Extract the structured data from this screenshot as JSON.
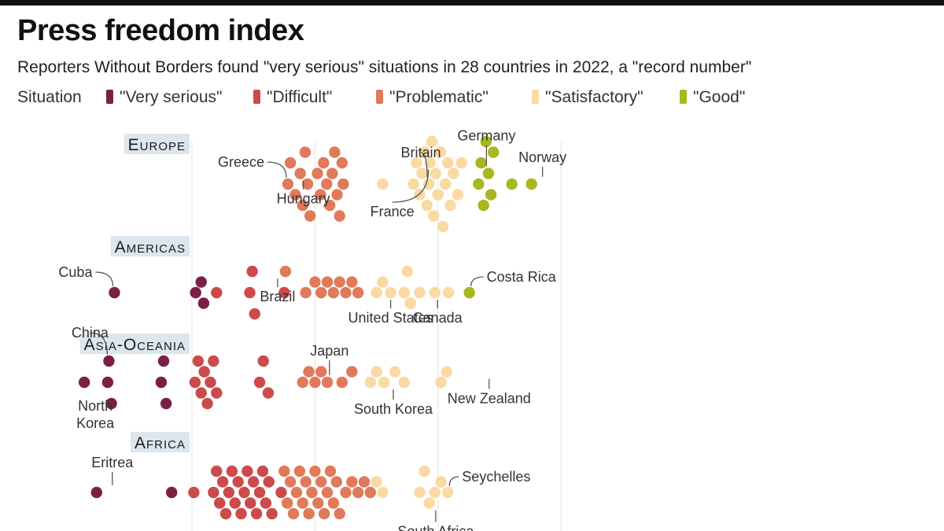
{
  "title": "Press freedom index",
  "subtitle": "Reporters Without Borders found \"very serious\" situations in 28 countries in 2022, a \"record number\"",
  "legend": {
    "label": "Situation",
    "items": [
      {
        "label": "\"Very serious\"",
        "color": "#7a1f45"
      },
      {
        "label": "\"Difficult\"",
        "color": "#cc4a4a"
      },
      {
        "label": "\"Problematic\"",
        "color": "#e07a5a"
      },
      {
        "label": "\"Satisfactory\"",
        "color": "#fbd9a3"
      },
      {
        "label": "\"Good\"",
        "color": "#a8b81e"
      }
    ]
  },
  "chart_data": {
    "type": "scatter",
    "style": "beeswarm",
    "title": "Press freedom index",
    "xlabel": "",
    "ylabel": "",
    "xlim": [
      20,
      100
    ],
    "gridlines_x": [
      40,
      60,
      80,
      100
    ],
    "grid": true,
    "legend_placement": "top",
    "regions": [
      {
        "name": "Europe",
        "annotations": [
          {
            "label": "Greece",
            "x": 55.6
          },
          {
            "label": "Hungary",
            "x": 57.6
          },
          {
            "label": "Britain",
            "x": 78.5
          },
          {
            "label": "Germany",
            "x": 82.5
          },
          {
            "label": "France",
            "x": 78.7
          },
          {
            "label": "Norway",
            "x": 95.2
          }
        ],
        "points": [
          {
            "x": 55.6,
            "c": 2
          },
          {
            "x": 56.0,
            "c": 2
          },
          {
            "x": 56.8,
            "c": 2
          },
          {
            "x": 57.6,
            "c": 2
          },
          {
            "x": 58.0,
            "c": 2
          },
          {
            "x": 58.4,
            "c": 2
          },
          {
            "x": 58.8,
            "c": 2
          },
          {
            "x": 59.2,
            "c": 2
          },
          {
            "x": 60.4,
            "c": 2
          },
          {
            "x": 60.9,
            "c": 2
          },
          {
            "x": 61.4,
            "c": 2
          },
          {
            "x": 61.9,
            "c": 2
          },
          {
            "x": 62.4,
            "c": 2
          },
          {
            "x": 62.8,
            "c": 2
          },
          {
            "x": 63.2,
            "c": 2
          },
          {
            "x": 63.6,
            "c": 2
          },
          {
            "x": 64.0,
            "c": 2
          },
          {
            "x": 64.4,
            "c": 2
          },
          {
            "x": 64.6,
            "c": 2
          },
          {
            "x": 71.0,
            "c": 3
          },
          {
            "x": 76.0,
            "c": 3
          },
          {
            "x": 76.5,
            "c": 3
          },
          {
            "x": 77.0,
            "c": 3
          },
          {
            "x": 77.4,
            "c": 3
          },
          {
            "x": 77.8,
            "c": 3
          },
          {
            "x": 78.2,
            "c": 3
          },
          {
            "x": 78.5,
            "c": 3
          },
          {
            "x": 78.7,
            "c": 3
          },
          {
            "x": 79.0,
            "c": 3
          },
          {
            "x": 79.3,
            "c": 3
          },
          {
            "x": 79.6,
            "c": 3
          },
          {
            "x": 80.0,
            "c": 3
          },
          {
            "x": 80.4,
            "c": 3
          },
          {
            "x": 80.8,
            "c": 3
          },
          {
            "x": 81.2,
            "c": 3
          },
          {
            "x": 81.6,
            "c": 3
          },
          {
            "x": 82.0,
            "c": 3
          },
          {
            "x": 82.5,
            "c": 3
          },
          {
            "x": 83.2,
            "c": 3
          },
          {
            "x": 83.8,
            "c": 3
          },
          {
            "x": 86.6,
            "c": 4
          },
          {
            "x": 87.0,
            "c": 4
          },
          {
            "x": 87.4,
            "c": 4
          },
          {
            "x": 87.8,
            "c": 4
          },
          {
            "x": 88.2,
            "c": 4
          },
          {
            "x": 88.6,
            "c": 4
          },
          {
            "x": 89.0,
            "c": 4
          },
          {
            "x": 92.0,
            "c": 4
          },
          {
            "x": 95.2,
            "c": 4
          }
        ]
      },
      {
        "name": "Americas",
        "annotations": [
          {
            "label": "Cuba",
            "x": 27.4
          },
          {
            "label": "Brazil",
            "x": 55.2
          },
          {
            "label": "United States",
            "x": 72.3
          },
          {
            "label": "Canada",
            "x": 81.7
          },
          {
            "label": "Costa Rica",
            "x": 85.1
          }
        ],
        "points": [
          {
            "x": 27.4,
            "c": 0
          },
          {
            "x": 40.6,
            "c": 0
          },
          {
            "x": 41.5,
            "c": 0
          },
          {
            "x": 41.9,
            "c": 0
          },
          {
            "x": 44.0,
            "c": 1
          },
          {
            "x": 49.4,
            "c": 1
          },
          {
            "x": 49.8,
            "c": 1
          },
          {
            "x": 50.2,
            "c": 1
          },
          {
            "x": 55.0,
            "c": 1
          },
          {
            "x": 55.2,
            "c": 2
          },
          {
            "x": 58.5,
            "c": 2
          },
          {
            "x": 60.0,
            "c": 2
          },
          {
            "x": 61.0,
            "c": 2
          },
          {
            "x": 62.0,
            "c": 2
          },
          {
            "x": 63.0,
            "c": 2
          },
          {
            "x": 64.0,
            "c": 2
          },
          {
            "x": 65.0,
            "c": 2
          },
          {
            "x": 66.0,
            "c": 2
          },
          {
            "x": 67.0,
            "c": 2
          },
          {
            "x": 70.0,
            "c": 3
          },
          {
            "x": 71.0,
            "c": 3
          },
          {
            "x": 72.3,
            "c": 3
          },
          {
            "x": 74.5,
            "c": 3
          },
          {
            "x": 75.0,
            "c": 3
          },
          {
            "x": 75.5,
            "c": 3
          },
          {
            "x": 77.0,
            "c": 3
          },
          {
            "x": 79.5,
            "c": 3
          },
          {
            "x": 81.7,
            "c": 3
          },
          {
            "x": 85.1,
            "c": 4
          }
        ]
      },
      {
        "name": "Asia-Oceania",
        "annotations": [
          {
            "label": "North Korea",
            "x": 22.5
          },
          {
            "label": "China",
            "x": 26.5
          },
          {
            "label": "Japan",
            "x": 64.4
          },
          {
            "label": "South Korea",
            "x": 71.2
          },
          {
            "label": "New Zealand",
            "x": 81.4
          }
        ],
        "points": [
          {
            "x": 22.5,
            "c": 0
          },
          {
            "x": 26.3,
            "c": 0
          },
          {
            "x": 26.5,
            "c": 0
          },
          {
            "x": 26.9,
            "c": 0
          },
          {
            "x": 35.0,
            "c": 0
          },
          {
            "x": 35.4,
            "c": 0
          },
          {
            "x": 35.8,
            "c": 0
          },
          {
            "x": 40.5,
            "c": 1
          },
          {
            "x": 41.0,
            "c": 1
          },
          {
            "x": 41.5,
            "c": 1
          },
          {
            "x": 42.0,
            "c": 1
          },
          {
            "x": 42.5,
            "c": 1
          },
          {
            "x": 43.0,
            "c": 1
          },
          {
            "x": 43.5,
            "c": 1
          },
          {
            "x": 44.0,
            "c": 1
          },
          {
            "x": 51.0,
            "c": 1
          },
          {
            "x": 51.6,
            "c": 1
          },
          {
            "x": 52.4,
            "c": 1
          },
          {
            "x": 58.0,
            "c": 2
          },
          {
            "x": 59.0,
            "c": 2
          },
          {
            "x": 60.0,
            "c": 2
          },
          {
            "x": 61.0,
            "c": 2
          },
          {
            "x": 62.0,
            "c": 2
          },
          {
            "x": 64.4,
            "c": 2
          },
          {
            "x": 66.0,
            "c": 2
          },
          {
            "x": 69.0,
            "c": 3
          },
          {
            "x": 70.0,
            "c": 3
          },
          {
            "x": 71.2,
            "c": 3
          },
          {
            "x": 73.0,
            "c": 3
          },
          {
            "x": 74.5,
            "c": 3
          },
          {
            "x": 80.5,
            "c": 3
          },
          {
            "x": 81.4,
            "c": 3
          }
        ]
      },
      {
        "name": "Africa",
        "annotations": [
          {
            "label": "Eritrea",
            "x": 24.5
          },
          {
            "label": "South Africa",
            "x": 78.6
          },
          {
            "label": "Seychelles",
            "x": 81.6
          }
        ],
        "points": [
          {
            "x": 24.5,
            "c": 0
          },
          {
            "x": 36.7,
            "c": 0
          },
          {
            "x": 40.3,
            "c": 1
          },
          {
            "x": 43.5,
            "c": 1
          },
          {
            "x": 44.0,
            "c": 1
          },
          {
            "x": 44.5,
            "c": 1
          },
          {
            "x": 45.0,
            "c": 1
          },
          {
            "x": 45.5,
            "c": 1
          },
          {
            "x": 46.0,
            "c": 1
          },
          {
            "x": 46.5,
            "c": 1
          },
          {
            "x": 47.0,
            "c": 1
          },
          {
            "x": 47.5,
            "c": 1
          },
          {
            "x": 48.0,
            "c": 1
          },
          {
            "x": 48.5,
            "c": 1
          },
          {
            "x": 49.0,
            "c": 1
          },
          {
            "x": 49.5,
            "c": 1
          },
          {
            "x": 50.0,
            "c": 1
          },
          {
            "x": 50.5,
            "c": 1
          },
          {
            "x": 51.0,
            "c": 1
          },
          {
            "x": 51.5,
            "c": 1
          },
          {
            "x": 52.0,
            "c": 1
          },
          {
            "x": 52.5,
            "c": 1
          },
          {
            "x": 53.0,
            "c": 1
          },
          {
            "x": 54.5,
            "c": 1
          },
          {
            "x": 55.0,
            "c": 2
          },
          {
            "x": 55.5,
            "c": 2
          },
          {
            "x": 56.0,
            "c": 2
          },
          {
            "x": 56.5,
            "c": 2
          },
          {
            "x": 57.0,
            "c": 2
          },
          {
            "x": 57.5,
            "c": 2
          },
          {
            "x": 58.0,
            "c": 2
          },
          {
            "x": 58.5,
            "c": 2
          },
          {
            "x": 59.0,
            "c": 2
          },
          {
            "x": 59.5,
            "c": 2
          },
          {
            "x": 60.0,
            "c": 2
          },
          {
            "x": 60.5,
            "c": 2
          },
          {
            "x": 61.0,
            "c": 2
          },
          {
            "x": 61.5,
            "c": 2
          },
          {
            "x": 62.0,
            "c": 2
          },
          {
            "x": 62.5,
            "c": 2
          },
          {
            "x": 63.0,
            "c": 2
          },
          {
            "x": 63.5,
            "c": 2
          },
          {
            "x": 64.0,
            "c": 2
          },
          {
            "x": 65.0,
            "c": 2
          },
          {
            "x": 66.0,
            "c": 2
          },
          {
            "x": 67.0,
            "c": 2
          },
          {
            "x": 68.0,
            "c": 2
          },
          {
            "x": 69.0,
            "c": 2
          },
          {
            "x": 70.0,
            "c": 3
          },
          {
            "x": 71.0,
            "c": 3
          },
          {
            "x": 77.0,
            "c": 3
          },
          {
            "x": 77.8,
            "c": 3
          },
          {
            "x": 78.6,
            "c": 3
          },
          {
            "x": 79.5,
            "c": 3
          },
          {
            "x": 80.5,
            "c": 3
          },
          {
            "x": 81.6,
            "c": 3
          }
        ]
      }
    ]
  }
}
